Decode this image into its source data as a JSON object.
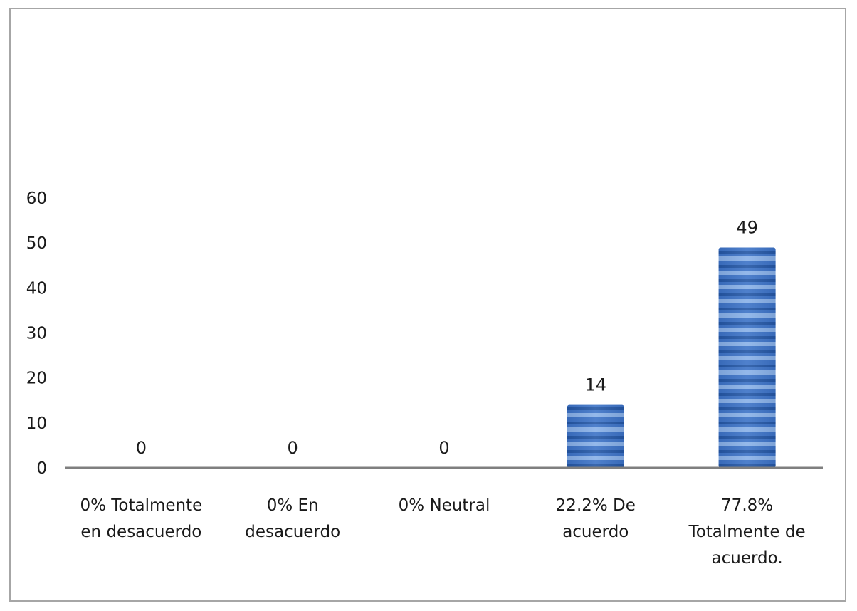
{
  "chart_data": {
    "type": "bar",
    "title": "",
    "xlabel": "",
    "ylabel": "",
    "ylim": [
      0,
      60
    ],
    "yticks": [
      0,
      10,
      20,
      30,
      40,
      50,
      60
    ],
    "grid": false,
    "legend": "none",
    "categories": [
      [
        "0% Totalmente",
        "en desacuerdo"
      ],
      [
        "0% En",
        "desacuerdo"
      ],
      [
        "0% Neutral"
      ],
      [
        "22.2% De",
        "acuerdo"
      ],
      [
        "77.8%",
        "Totalmente de",
        "acuerdo."
      ]
    ],
    "values": [
      0,
      0,
      0,
      14,
      49
    ],
    "data_labels": [
      "0",
      "0",
      "0",
      "14",
      "49"
    ],
    "bar_color": "#4a7bc8",
    "bar_stripe_dark": "#1f4f9a",
    "bar_stripe_light": "#9cc0ee"
  }
}
